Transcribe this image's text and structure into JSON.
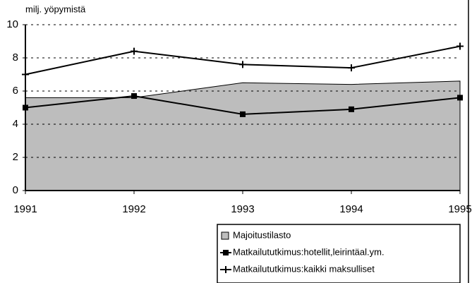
{
  "chart_data": {
    "type": "line",
    "y_label": "milj. yöpymistä",
    "categories": [
      "1991",
      "1992",
      "1993",
      "1994",
      "1995"
    ],
    "series": [
      {
        "name": "Majoitustilasto",
        "kind": "area",
        "color": "#bdbdbd",
        "values": [
          5.6,
          5.6,
          6.5,
          6.4,
          6.6
        ]
      },
      {
        "name": "Matkailututkimus:hotellit,leirintäal.ym.",
        "kind": "line",
        "marker": "square",
        "color": "#000000",
        "values": [
          5.0,
          5.7,
          4.6,
          4.9,
          5.6
        ]
      },
      {
        "name": "Matkailututkimus:kaikki maksulliset",
        "kind": "line",
        "marker": "star",
        "color": "#000000",
        "values": [
          7.0,
          8.4,
          7.6,
          7.4,
          8.7
        ]
      }
    ],
    "ylim": [
      0,
      10
    ],
    "yticks": [
      0,
      2,
      4,
      6,
      8,
      10
    ],
    "grid": true,
    "legend": "bottom-right"
  }
}
